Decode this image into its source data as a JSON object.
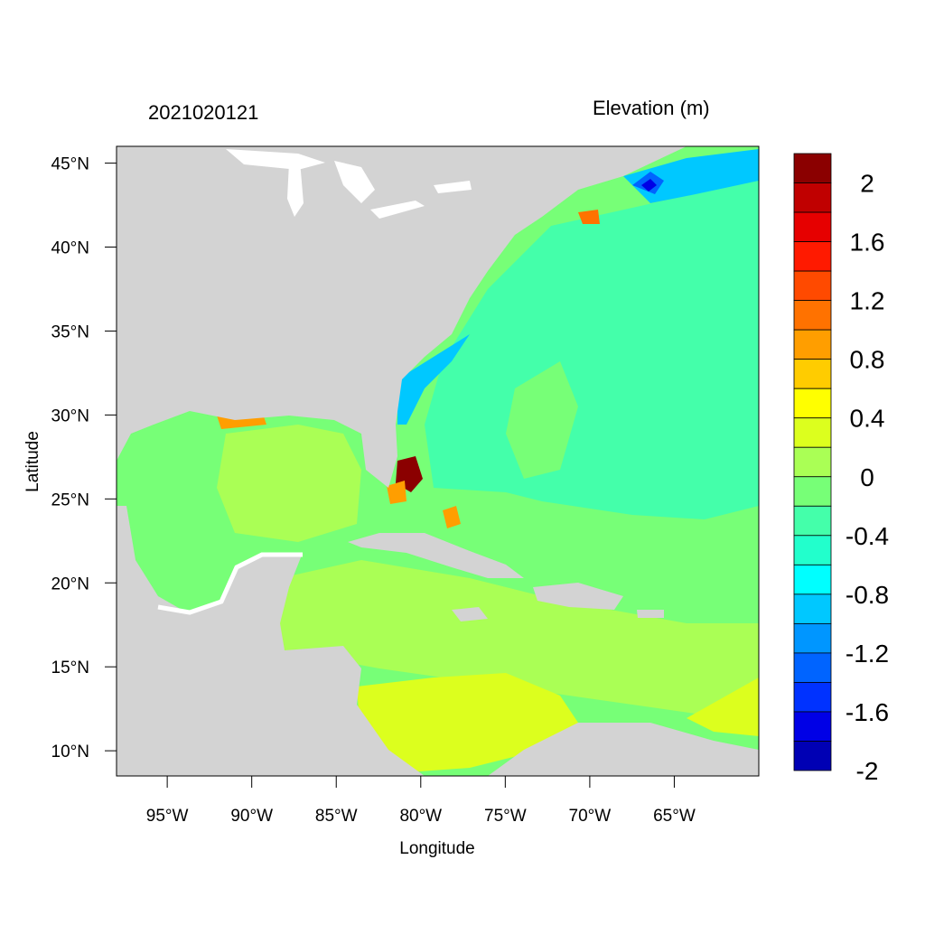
{
  "header": {
    "date": "2021020121",
    "variable": "Elevation (m)"
  },
  "axes": {
    "xlabel": "Longitude",
    "ylabel": "Latitude",
    "lon_ticks": [
      "95°W",
      "90°W",
      "85°W",
      "80°W",
      "75°W",
      "70°W",
      "65°W"
    ],
    "lat_ticks": [
      "45°N",
      "40°N",
      "35°N",
      "30°N",
      "25°N",
      "20°N",
      "15°N",
      "10°N"
    ],
    "lon_values": [
      -95,
      -90,
      -85,
      -80,
      -75,
      -70,
      -65
    ],
    "lat_values": [
      45,
      40,
      35,
      30,
      25,
      20,
      15,
      10
    ],
    "lon_range": [
      -98,
      -60
    ],
    "lat_range": [
      8.5,
      46
    ]
  },
  "colorbar": {
    "labels": [
      "2",
      "1.6",
      "1.2",
      "0.8",
      "0.4",
      "0",
      "-0.4",
      "-0.8",
      "-1.2",
      "-1.6",
      "-2"
    ],
    "colors": [
      "#8b0000",
      "#c00000",
      "#e60000",
      "#ff1a00",
      "#ff4a00",
      "#ff7200",
      "#ff9e00",
      "#ffcc00",
      "#ffff00",
      "#dcff1e",
      "#aaff55",
      "#77ff77",
      "#44ffaa",
      "#22ffcc",
      "#00ffff",
      "#00c8ff",
      "#0096ff",
      "#0064ff",
      "#0032ff",
      "#0000e6",
      "#0000b4"
    ]
  },
  "colors": {
    "land": "#d3d3d3",
    "sea_neutral": "#77ff77",
    "sea_positive": "#aaff55",
    "sea_negative": "#44ffaa"
  }
}
